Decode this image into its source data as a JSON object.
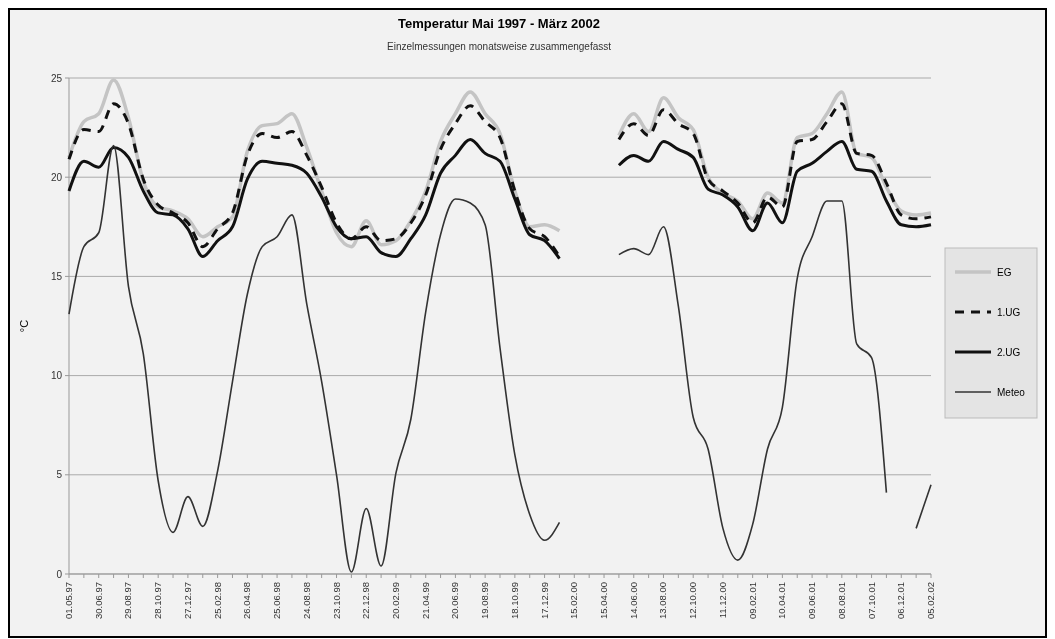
{
  "chart_data": {
    "type": "line",
    "title": "Temperatur Mai 1997 - März 2002",
    "subtitle": "Einzelmessungen monatsweise zusammengefasst",
    "ylabel": "°C",
    "categories": [
      "01.05.97",
      null,
      "30.06.97",
      null,
      "29.08.97",
      null,
      "28.10.97",
      null,
      "27.12.97",
      null,
      "25.02.98",
      null,
      "26.04.98",
      null,
      "25.06.98",
      null,
      "24.08.98",
      null,
      "23.10.98",
      null,
      "22.12.98",
      null,
      "20.02.99",
      null,
      "21.04.99",
      null,
      "20.06.99",
      null,
      "19.08.99",
      null,
      "18.10.99",
      null,
      "17.12.99",
      null,
      "15.02.00",
      null,
      "15.04.00",
      null,
      "14.06.00",
      null,
      "13.08.00",
      null,
      "12.10.00",
      null,
      "11.12.00",
      null,
      "09.02.01",
      null,
      "10.04.01",
      null,
      "09.06.01",
      null,
      "08.08.01",
      null,
      "07.10.01",
      null,
      "06.12.01",
      null,
      "05.02.02"
    ],
    "ylim": [
      0,
      25
    ],
    "yticks": [
      0,
      5,
      10,
      15,
      20,
      25
    ],
    "grid": "y",
    "legend": "right",
    "series": [
      {
        "name": "EG",
        "color": "#c4c4c4",
        "line_style": "solid",
        "values": [
          21.0,
          22.8,
          23.2,
          24.9,
          23.0,
          19.8,
          18.5,
          18.3,
          17.9,
          17.0,
          17.5,
          18.0,
          21.3,
          22.6,
          22.7,
          23.2,
          21.5,
          19.3,
          17.2,
          16.5,
          17.8,
          16.6,
          16.8,
          17.8,
          19.3,
          21.8,
          23.2,
          24.3,
          23.2,
          22.2,
          19.3,
          17.5,
          17.6,
          17.3,
          null,
          null,
          null,
          22.1,
          23.2,
          22.3,
          24.0,
          23.0,
          22.4,
          20.0,
          19.2,
          18.8,
          17.9,
          19.2,
          18.7,
          22.0,
          22.2,
          23.2,
          24.3,
          21.2,
          21.0,
          19.5,
          18.3,
          18.1,
          18.2
        ]
      },
      {
        "name": "1.UG",
        "color": "#111111",
        "line_style": "dashed",
        "values": [
          20.9,
          22.4,
          22.3,
          23.7,
          22.7,
          19.9,
          18.6,
          18.2,
          17.7,
          16.5,
          17.4,
          18.2,
          21.1,
          22.2,
          22.0,
          22.3,
          21.1,
          19.5,
          17.7,
          16.9,
          17.5,
          16.8,
          16.9,
          17.7,
          19.1,
          21.4,
          22.7,
          23.6,
          22.8,
          22.0,
          19.3,
          17.4,
          17.0,
          16.0,
          null,
          null,
          null,
          21.9,
          22.7,
          22.1,
          23.4,
          22.7,
          22.2,
          19.9,
          19.3,
          18.7,
          17.7,
          19.0,
          18.5,
          21.8,
          21.9,
          22.8,
          23.7,
          21.2,
          21.1,
          19.7,
          18.1,
          17.9,
          18.0
        ]
      },
      {
        "name": "2.UG",
        "color": "#111111",
        "line_style": "solid",
        "values": [
          19.3,
          20.8,
          20.5,
          21.5,
          21.0,
          19.3,
          18.2,
          18.1,
          17.4,
          16.0,
          16.8,
          17.5,
          19.9,
          20.8,
          20.7,
          20.6,
          20.2,
          19.0,
          17.5,
          16.9,
          17.0,
          16.2,
          16.0,
          16.9,
          18.1,
          20.2,
          21.1,
          21.9,
          21.2,
          20.8,
          18.9,
          17.1,
          16.8,
          15.9,
          null,
          null,
          null,
          20.6,
          21.1,
          20.8,
          21.8,
          21.4,
          21.0,
          19.4,
          19.1,
          18.5,
          17.3,
          18.7,
          17.7,
          20.3,
          20.7,
          21.3,
          21.8,
          20.4,
          20.3,
          18.8,
          17.6,
          17.5,
          17.6
        ]
      },
      {
        "name": "Meteo",
        "color": "#333333",
        "line_style": "solid",
        "values": [
          13.1,
          16.5,
          17.2,
          21.6,
          14.5,
          11.1,
          4.7,
          2.1,
          3.9,
          2.4,
          5.2,
          9.7,
          14.1,
          16.5,
          17.0,
          18.1,
          13.6,
          9.7,
          5.0,
          0.1,
          3.3,
          0.4,
          5.1,
          7.8,
          13.2,
          17.1,
          18.9,
          18.7,
          17.6,
          11.4,
          6.0,
          3.0,
          1.7,
          2.6,
          null,
          null,
          null,
          16.1,
          16.4,
          16.1,
          17.5,
          13.5,
          7.9,
          6.3,
          2.3,
          0.7,
          2.5,
          6.3,
          8.4,
          14.9,
          17.0,
          18.8,
          18.8,
          11.6,
          10.9,
          4.1,
          null,
          2.3,
          4.5
        ]
      }
    ]
  }
}
